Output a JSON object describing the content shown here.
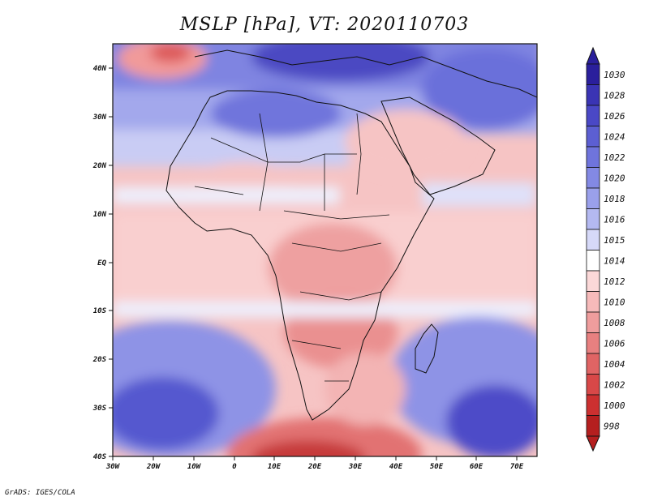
{
  "title": "MSLP [hPa], VT: 2020110703",
  "credit": "GrADS: IGES/COLA",
  "map": {
    "lon_range": [
      -30,
      75
    ],
    "lat_range": [
      -40,
      45
    ],
    "lon_ticks": [
      "30W",
      "20W",
      "10W",
      "0",
      "10E",
      "20E",
      "30E",
      "40E",
      "50E",
      "60E",
      "70E"
    ],
    "lat_ticks": [
      "40N",
      "30N",
      "20N",
      "10N",
      "EQ",
      "10S",
      "20S",
      "30S",
      "40S"
    ]
  },
  "colorbar": {
    "levels": [
      "1030",
      "1028",
      "1026",
      "1024",
      "1022",
      "1020",
      "1018",
      "1016",
      "1015",
      "1014",
      "1012",
      "1010",
      "1008",
      "1006",
      "1004",
      "1002",
      "1000",
      "998"
    ],
    "colors": [
      "#2a1f9c",
      "#3a34b4",
      "#4a48c6",
      "#5c5fd2",
      "#6f74dc",
      "#8389e4",
      "#9aa0eb",
      "#b4b9f1",
      "#d6d9f8",
      "#ffffff",
      "#fbd8d8",
      "#f6baba",
      "#ef9d9d",
      "#e88080",
      "#e06464",
      "#d84848",
      "#cc3030",
      "#b51f1f"
    ]
  }
}
